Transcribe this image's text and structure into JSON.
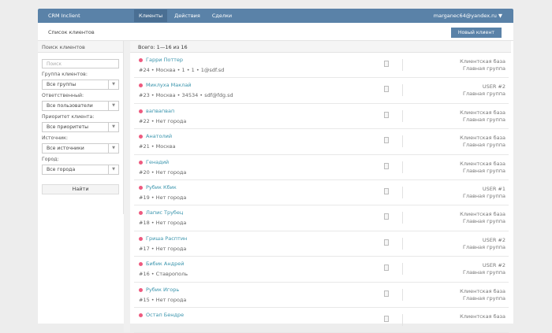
{
  "header": {
    "brand": "CRM Inclient",
    "nav": [
      "Клиенты",
      "Действия",
      "Сделки"
    ],
    "user": "marganec64@yandex.ru"
  },
  "subheader": {
    "title": "Список клиентов",
    "new_client": "Новый клиент"
  },
  "sidebar": {
    "title": "Поиск клиентов",
    "search_placeholder": "Поиск",
    "filters": [
      {
        "label": "Группа клиентов:",
        "value": "Все группы"
      },
      {
        "label": "Ответственный:",
        "value": "Все пользователи"
      },
      {
        "label": "Приоритет клиента:",
        "value": "Все приоритеты"
      },
      {
        "label": "Источник:",
        "value": "Все источники"
      },
      {
        "label": "Город:",
        "value": "Все города"
      }
    ],
    "find": "Найти"
  },
  "list": {
    "summary": "Всего: 1—16 из 16",
    "rows": [
      {
        "name": "Гарри Поттер",
        "meta": "#24 • Москва • 1 • 1 • 1@sdf.sd",
        "owner": "Клиентская база",
        "group": "Главная группа"
      },
      {
        "name": "Миклуха Маклай",
        "meta": "#23 • Москва • 34534 • sdf@fdg.sd",
        "owner": "USER #2",
        "group": "Главная группа"
      },
      {
        "name": "вапвапвап",
        "meta": "#22 • Нет города",
        "owner": "Клиентская база",
        "group": "Главная группа"
      },
      {
        "name": "Анатолий",
        "meta": "#21 • Москва",
        "owner": "Клиентская база",
        "group": "Главная группа"
      },
      {
        "name": "Генадий",
        "meta": "#20 • Нет города",
        "owner": "Клиентская база",
        "group": "Главная группа"
      },
      {
        "name": "Рубик Кбик",
        "meta": "#19 • Нет города",
        "owner": "USER #1",
        "group": "Главная группа"
      },
      {
        "name": "Лапис Трубец",
        "meta": "#18 • Нет города",
        "owner": "Клиентская база",
        "group": "Главная группа"
      },
      {
        "name": "Гриша Расптин",
        "meta": "#17 • Нет города",
        "owner": "USER #2",
        "group": "Главная группа"
      },
      {
        "name": "Бибик Андрей",
        "meta": "#16 • Ставрополь",
        "owner": "USER #2",
        "group": "Главная группа"
      },
      {
        "name": "Рубик Игорь",
        "meta": "#15 • Нет города",
        "owner": "Клиентская база",
        "group": "Главная группа"
      },
      {
        "name": "Остап Бендре",
        "meta": "",
        "owner": "Клиентская база",
        "group": ""
      }
    ]
  },
  "colors": {
    "header": "#5a82a8",
    "priority_dot": "#ee5a7f",
    "link": "#3b95ad"
  }
}
